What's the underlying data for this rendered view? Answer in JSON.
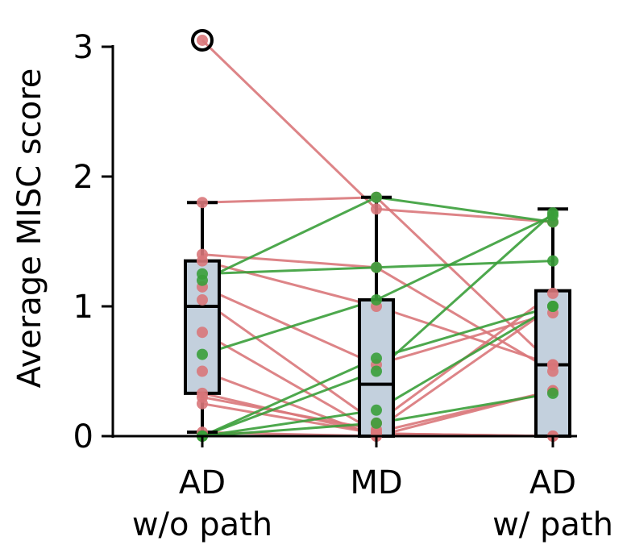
{
  "chart_data": {
    "type": "box-with-paired-lines",
    "ylabel": "Average MISC score",
    "ylim": [
      0,
      3.2
    ],
    "yticks": [
      0,
      1,
      2,
      3
    ],
    "categories": [
      {
        "line1": "AD",
        "line2": "w/o path"
      },
      {
        "line1": "MD",
        "line2": ""
      },
      {
        "line1": "AD",
        "line2": "w/ path"
      }
    ],
    "colors": {
      "decrease": "#d9777a",
      "increase": "#3a9e3a",
      "box_fill": "#c3d0dd",
      "box_edge": "#000000"
    },
    "boxes": [
      {
        "whisker_low": 0.03,
        "q1": 0.33,
        "median": 1.0,
        "q3": 1.35,
        "whisker_high": 1.8
      },
      {
        "whisker_low": 0.0,
        "q1": 0.0,
        "median": 0.4,
        "q3": 1.05,
        "whisker_high": 1.84
      },
      {
        "whisker_low": 0.0,
        "q1": 0.0,
        "median": 0.55,
        "q3": 1.12,
        "whisker_high": 1.75
      }
    ],
    "outliers": [
      {
        "category_index": 0,
        "value": 3.05
      }
    ],
    "pairs": [
      {
        "values": [
          3.05,
          1.75,
          1.65
        ],
        "trend": "decrease"
      },
      {
        "values": [
          1.8,
          1.84,
          0.55
        ],
        "trend": "decrease"
      },
      {
        "values": [
          1.4,
          1.3,
          0.5
        ],
        "trend": "decrease"
      },
      {
        "values": [
          1.35,
          1.0,
          0.55
        ],
        "trend": "decrease"
      },
      {
        "values": [
          1.15,
          0.55,
          0.95
        ],
        "trend": "decrease"
      },
      {
        "values": [
          1.05,
          0.1,
          1.1
        ],
        "trend": "decrease"
      },
      {
        "values": [
          0.8,
          0.03,
          0.35
        ],
        "trend": "decrease"
      },
      {
        "values": [
          0.5,
          0.0,
          0.35
        ],
        "trend": "decrease"
      },
      {
        "values": [
          0.33,
          0.02,
          0.0
        ],
        "trend": "decrease"
      },
      {
        "values": [
          0.3,
          0.05,
          1.0
        ],
        "trend": "decrease"
      },
      {
        "values": [
          0.25,
          0.02,
          0.0
        ],
        "trend": "decrease"
      },
      {
        "values": [
          0.03,
          0.0,
          0.0
        ],
        "trend": "decrease"
      },
      {
        "values": [
          1.2,
          1.84,
          1.65
        ],
        "trend": "increase"
      },
      {
        "values": [
          1.25,
          1.3,
          1.35
        ],
        "trend": "increase"
      },
      {
        "values": [
          0.63,
          1.05,
          1.7
        ],
        "trend": "increase"
      },
      {
        "values": [
          0.0,
          0.6,
          1.0
        ],
        "trend": "increase"
      },
      {
        "values": [
          0.0,
          0.5,
          1.72
        ],
        "trend": "increase"
      },
      {
        "values": [
          0.0,
          0.2,
          1.0
        ],
        "trend": "increase"
      },
      {
        "values": [
          0.0,
          0.1,
          0.33
        ],
        "trend": "increase"
      }
    ]
  }
}
